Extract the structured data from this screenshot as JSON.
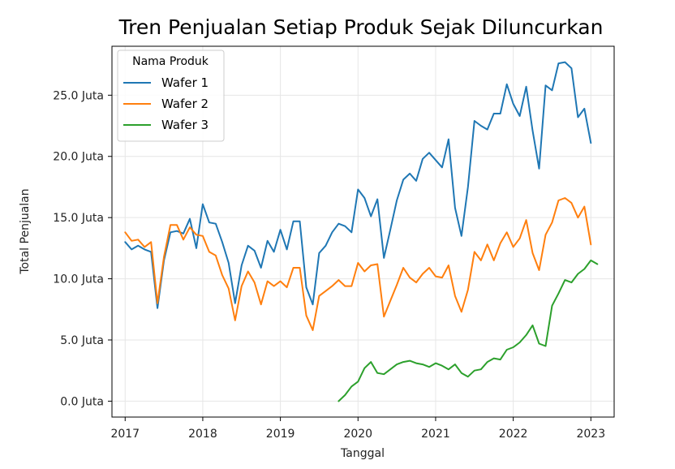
{
  "chart_data": {
    "type": "line",
    "title": "Tren Penjualan Setiap Produk Sejak Diluncurkan",
    "xlabel": "Tanggal",
    "ylabel": "Total Penjualan",
    "xlim": [
      2016.83,
      2023.3
    ],
    "ylim": [
      -1.3,
      29.0
    ],
    "x_ticks": [
      2017,
      2018,
      2019,
      2020,
      2021,
      2022,
      2023
    ],
    "x_tick_labels": [
      "2017",
      "2018",
      "2019",
      "2020",
      "2021",
      "2022",
      "2023"
    ],
    "y_ticks": [
      0,
      5,
      10,
      15,
      20,
      25
    ],
    "y_tick_labels": [
      "0.0 Juta",
      "5.0 Juta",
      "10.0 Juta",
      "15.0 Juta",
      "20.0 Juta",
      "25.0 Juta"
    ],
    "grid": true,
    "legend": {
      "title": "Nama Produk",
      "position": "top-left"
    },
    "series": [
      {
        "name": "Wafer 1",
        "color": "#1f77b4",
        "start": [
          2017,
          1
        ],
        "values": [
          13.0,
          12.4,
          12.7,
          12.4,
          12.2,
          7.6,
          11.5,
          13.8,
          13.9,
          13.7,
          14.9,
          12.5,
          16.1,
          14.6,
          14.5,
          13.0,
          11.3,
          8.0,
          11.1,
          12.7,
          12.3,
          10.9,
          13.1,
          12.2,
          14.0,
          12.4,
          14.7,
          14.7,
          9.3,
          7.9,
          12.1,
          12.7,
          13.8,
          14.5,
          14.3,
          13.8,
          17.3,
          16.6,
          15.1,
          16.5,
          11.7,
          14.0,
          16.4,
          18.1,
          18.6,
          18.0,
          19.8,
          20.3,
          19.7,
          19.1,
          21.4,
          15.8,
          13.5,
          17.5,
          22.9,
          22.5,
          22.2,
          23.5,
          23.5,
          25.9,
          24.3,
          23.3,
          25.7,
          22.1,
          19.0,
          25.8,
          25.4,
          27.6,
          27.7,
          27.2,
          23.2,
          23.9,
          21.1
        ]
      },
      {
        "name": "Wafer 2",
        "color": "#ff7f0e",
        "start": [
          2017,
          1
        ],
        "values": [
          13.8,
          13.1,
          13.2,
          12.6,
          13.0,
          8.0,
          11.8,
          14.4,
          14.4,
          13.2,
          14.2,
          13.6,
          13.5,
          12.2,
          11.9,
          10.3,
          9.2,
          6.6,
          9.4,
          10.6,
          9.7,
          7.9,
          9.8,
          9.4,
          9.8,
          9.3,
          10.9,
          10.9,
          7.0,
          5.8,
          8.6,
          9.0,
          9.4,
          9.9,
          9.4,
          9.4,
          11.3,
          10.6,
          11.1,
          11.2,
          6.9,
          8.2,
          9.5,
          10.9,
          10.1,
          9.7,
          10.4,
          10.9,
          10.2,
          10.1,
          11.1,
          8.6,
          7.3,
          9.1,
          12.2,
          11.5,
          12.8,
          11.5,
          12.9,
          13.8,
          12.6,
          13.3,
          14.8,
          12.1,
          10.7,
          13.6,
          14.6,
          16.4,
          16.6,
          16.2,
          15.0,
          15.9,
          12.8
        ]
      },
      {
        "name": "Wafer 3",
        "color": "#2ca02c",
        "start": [
          2019,
          10
        ],
        "values": [
          0.0,
          0.5,
          1.2,
          1.6,
          2.7,
          3.2,
          2.3,
          2.2,
          2.6,
          3.0,
          3.2,
          3.3,
          3.1,
          3.0,
          2.8,
          3.1,
          2.9,
          2.6,
          3.0,
          2.3,
          2.0,
          2.5,
          2.6,
          3.2,
          3.5,
          3.4,
          4.2,
          4.4,
          4.8,
          5.4,
          6.2,
          4.7,
          4.5,
          7.8,
          8.8,
          9.9,
          9.7,
          10.4,
          10.8,
          11.5,
          11.2
        ]
      }
    ]
  }
}
